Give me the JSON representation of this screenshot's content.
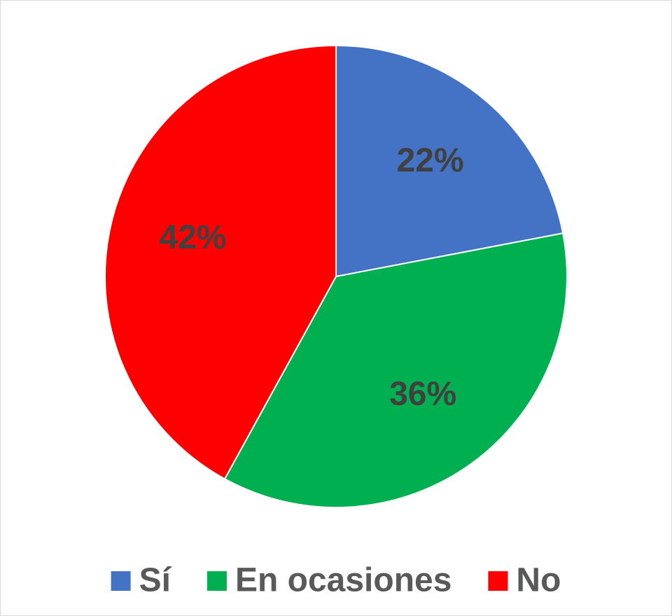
{
  "chart_data": {
    "type": "pie",
    "categories": [
      "Sí",
      "En ocasiones",
      "No"
    ],
    "values": [
      22,
      36,
      42
    ],
    "value_labels": [
      "22%",
      "36%",
      "42%"
    ],
    "colors": [
      "#4472c4",
      "#00b050",
      "#ff0000"
    ],
    "legend": "bottom"
  }
}
